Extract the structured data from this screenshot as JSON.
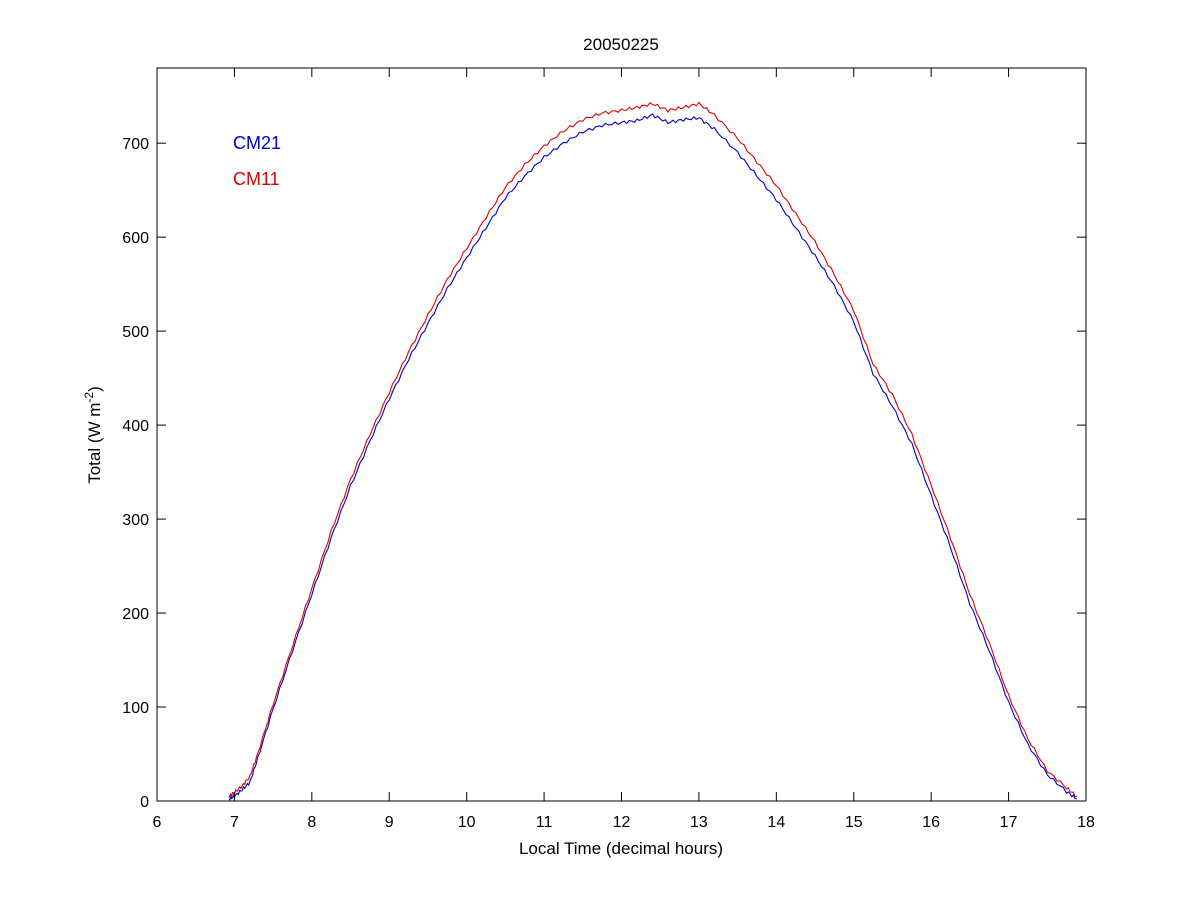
{
  "chart_data": {
    "type": "line",
    "title": "20050225",
    "xlabel": "Local Time (decimal hours)",
    "ylabel": {
      "prefix": "Total (W m",
      "superscript": "-2",
      "suffix": ")"
    },
    "xlim": [
      6,
      18
    ],
    "ylim": [
      0,
      780
    ],
    "xticks": [
      6,
      7,
      8,
      9,
      10,
      11,
      12,
      13,
      14,
      15,
      16,
      17,
      18
    ],
    "yticks": [
      0,
      100,
      200,
      300,
      400,
      500,
      600,
      700
    ],
    "grid": false,
    "legend_placement": "top-left",
    "series": [
      {
        "name": "CM21",
        "color": "#0000cc",
        "x": [
          6.93,
          7.0,
          7.1,
          7.2,
          7.3,
          7.5,
          7.75,
          8.0,
          8.25,
          8.5,
          8.75,
          9.0,
          9.25,
          9.5,
          9.75,
          10.0,
          10.25,
          10.5,
          10.75,
          11.0,
          11.25,
          11.5,
          11.75,
          12.0,
          12.2,
          12.4,
          12.6,
          12.8,
          13.0,
          13.2,
          13.5,
          13.75,
          14.0,
          14.25,
          14.5,
          14.75,
          15.0,
          15.25,
          15.5,
          15.75,
          16.0,
          16.25,
          16.5,
          16.75,
          17.0,
          17.25,
          17.5,
          17.75,
          17.88
        ],
        "y": [
          2,
          5,
          12,
          20,
          45,
          98,
          160,
          220,
          280,
          335,
          383,
          428,
          470,
          508,
          545,
          578,
          610,
          642,
          665,
          685,
          700,
          712,
          719,
          722,
          724,
          730,
          722,
          725,
          727,
          715,
          690,
          665,
          640,
          610,
          580,
          548,
          510,
          455,
          420,
          380,
          325,
          270,
          210,
          160,
          105,
          60,
          28,
          10,
          2
        ]
      },
      {
        "name": "CM11",
        "color": "#dd0000",
        "x": [
          6.93,
          7.0,
          7.1,
          7.2,
          7.3,
          7.5,
          7.75,
          8.0,
          8.25,
          8.5,
          8.75,
          9.0,
          9.25,
          9.5,
          9.75,
          10.0,
          10.25,
          10.5,
          10.75,
          11.0,
          11.25,
          11.5,
          11.75,
          12.0,
          12.2,
          12.4,
          12.6,
          12.8,
          13.0,
          13.2,
          13.5,
          13.75,
          14.0,
          14.25,
          14.5,
          14.75,
          15.0,
          15.25,
          15.5,
          15.75,
          16.0,
          16.25,
          16.5,
          16.75,
          17.0,
          17.25,
          17.5,
          17.75,
          17.88
        ],
        "y": [
          5,
          9,
          16,
          26,
          50,
          103,
          165,
          226,
          287,
          342,
          390,
          435,
          478,
          517,
          555,
          588,
          621,
          653,
          677,
          697,
          713,
          725,
          732,
          735,
          738,
          742,
          735,
          738,
          742,
          730,
          705,
          680,
          655,
          625,
          595,
          560,
          522,
          465,
          432,
          390,
          336,
          280,
          220,
          168,
          112,
          66,
          32,
          14,
          5
        ]
      }
    ]
  }
}
